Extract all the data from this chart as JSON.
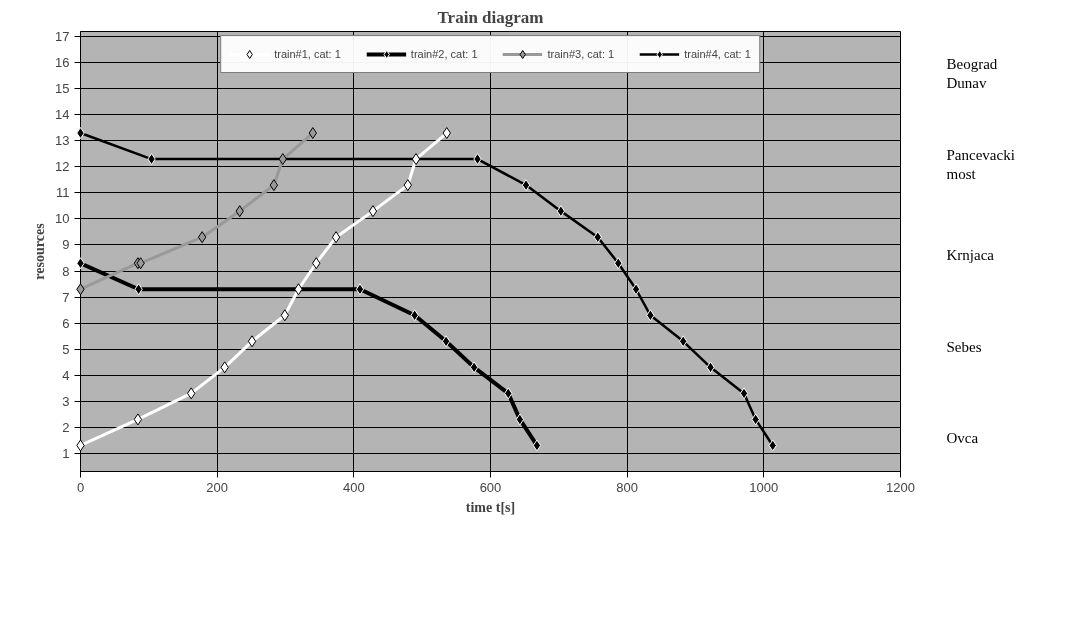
{
  "chart_data": {
    "type": "line",
    "title": "Train diagram",
    "xlabel": "time t[s]",
    "ylabel": "resources",
    "xlim": [
      0,
      1200
    ],
    "xticks": [
      0,
      200,
      400,
      600,
      800,
      1000,
      1200
    ],
    "ylim": [
      0.3,
      17.2
    ],
    "yticks": [
      1,
      2,
      3,
      4,
      5,
      6,
      7,
      8,
      9,
      10,
      11,
      12,
      13,
      14,
      15,
      16,
      17
    ],
    "grid": true,
    "legend": "top",
    "marker": "diamond",
    "line_style": "solid",
    "series": [
      {
        "name": "train#1, cat: 1",
        "color": "#ffffff",
        "x": [
          0,
          84,
          162,
          211,
          251,
          299,
          319,
          345,
          374,
          428,
          479,
          491,
          536
        ],
        "values": [
          1.3,
          2.3,
          3.3,
          4.3,
          5.3,
          6.3,
          7.3,
          8.3,
          9.3,
          10.3,
          11.3,
          12.3,
          13.3
        ]
      },
      {
        "name": "train#2, cat: 1",
        "color": "#000000",
        "x": [
          0,
          85,
          409,
          489,
          535,
          576,
          626,
          643,
          668
        ],
        "values": [
          8.3,
          7.3,
          7.3,
          6.3,
          5.3,
          4.3,
          3.3,
          2.3,
          1.3
        ]
      },
      {
        "name": "train#3, cat: 1",
        "color": "#999999",
        "x": [
          0,
          84,
          88,
          178,
          233,
          283,
          296,
          340
        ],
        "values": [
          7.3,
          8.3,
          8.3,
          9.3,
          10.3,
          11.3,
          12.3,
          13.3
        ]
      },
      {
        "name": "train#4, cat: 1",
        "color": "#000000",
        "x": [
          0,
          104,
          581,
          652,
          703,
          757,
          787,
          813,
          834,
          882,
          922,
          971,
          988,
          1013
        ],
        "values": [
          13.3,
          12.3,
          12.3,
          11.3,
          10.3,
          9.3,
          8.3,
          7.3,
          6.3,
          5.3,
          4.3,
          3.3,
          2.3,
          1.3
        ]
      }
    ],
    "annotations": [
      "Beograd\nDunav",
      "Pancevacki\nmost",
      "Krnjaca",
      "Sebes",
      "Ovca"
    ]
  }
}
